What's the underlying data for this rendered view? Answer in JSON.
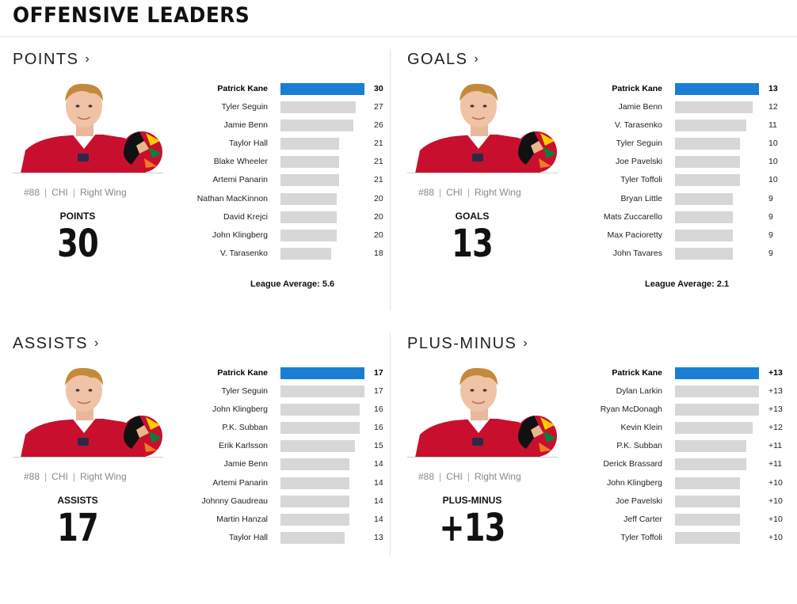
{
  "page_title": "OFFENSIVE LEADERS",
  "colors": {
    "accent_bar": "#1a7fd4",
    "bar": "#d7d7d7",
    "jersey": "#c8102e"
  },
  "panels": [
    {
      "heading": "POINTS",
      "heading_icon": "chevron-right-icon",
      "player": {
        "number": "#88",
        "team": "CHI",
        "position": "Right Wing"
      },
      "stat_label": "POINTS",
      "stat_value": "30",
      "league_average": "League Average: 5.6",
      "max": 30,
      "leaders": [
        {
          "name": "Patrick Kane",
          "value": "30",
          "num": 30
        },
        {
          "name": "Tyler Seguin",
          "value": "27",
          "num": 27
        },
        {
          "name": "Jamie Benn",
          "value": "26",
          "num": 26
        },
        {
          "name": "Taylor Hall",
          "value": "21",
          "num": 21
        },
        {
          "name": "Blake Wheeler",
          "value": "21",
          "num": 21
        },
        {
          "name": "Artemi Panarin",
          "value": "21",
          "num": 21
        },
        {
          "name": "Nathan MacKinnon",
          "value": "20",
          "num": 20
        },
        {
          "name": "David Krejci",
          "value": "20",
          "num": 20
        },
        {
          "name": "John Klingberg",
          "value": "20",
          "num": 20
        },
        {
          "name": "V. Tarasenko",
          "value": "18",
          "num": 18
        }
      ]
    },
    {
      "heading": "GOALS",
      "heading_icon": "chevron-right-icon",
      "player": {
        "number": "#88",
        "team": "CHI",
        "position": "Right Wing"
      },
      "stat_label": "GOALS",
      "stat_value": "13",
      "league_average": "League Average: 2.1",
      "max": 13,
      "leaders": [
        {
          "name": "Patrick Kane",
          "value": "13",
          "num": 13
        },
        {
          "name": "Jamie Benn",
          "value": "12",
          "num": 12
        },
        {
          "name": "V. Tarasenko",
          "value": "11",
          "num": 11
        },
        {
          "name": "Tyler Seguin",
          "value": "10",
          "num": 10
        },
        {
          "name": "Joe Pavelski",
          "value": "10",
          "num": 10
        },
        {
          "name": "Tyler Toffoli",
          "value": "10",
          "num": 10
        },
        {
          "name": "Bryan Little",
          "value": "9",
          "num": 9
        },
        {
          "name": "Mats Zuccarello",
          "value": "9",
          "num": 9
        },
        {
          "name": "Max Pacioretty",
          "value": "9",
          "num": 9
        },
        {
          "name": "John Tavares",
          "value": "9",
          "num": 9
        }
      ]
    },
    {
      "heading": "ASSISTS",
      "heading_icon": "chevron-right-icon",
      "player": {
        "number": "#88",
        "team": "CHI",
        "position": "Right Wing"
      },
      "stat_label": "ASSISTS",
      "stat_value": "17",
      "league_average": "",
      "max": 17,
      "leaders": [
        {
          "name": "Patrick Kane",
          "value": "17",
          "num": 17
        },
        {
          "name": "Tyler Seguin",
          "value": "17",
          "num": 17
        },
        {
          "name": "John Klingberg",
          "value": "16",
          "num": 16
        },
        {
          "name": "P.K. Subban",
          "value": "16",
          "num": 16
        },
        {
          "name": "Erik Karlsson",
          "value": "15",
          "num": 15
        },
        {
          "name": "Jamie Benn",
          "value": "14",
          "num": 14
        },
        {
          "name": "Artemi Panarin",
          "value": "14",
          "num": 14
        },
        {
          "name": "Johnny Gaudreau",
          "value": "14",
          "num": 14
        },
        {
          "name": "Martin Hanzal",
          "value": "14",
          "num": 14
        },
        {
          "name": "Taylor Hall",
          "value": "13",
          "num": 13
        }
      ]
    },
    {
      "heading": "PLUS-MINUS",
      "heading_icon": "chevron-right-icon",
      "player": {
        "number": "#88",
        "team": "CHI",
        "position": "Right Wing"
      },
      "stat_label": "PLUS-MINUS",
      "stat_value": "+13",
      "league_average": "",
      "max": 13,
      "leaders": [
        {
          "name": "Patrick Kane",
          "value": "+13",
          "num": 13
        },
        {
          "name": "Dylan Larkin",
          "value": "+13",
          "num": 13
        },
        {
          "name": "Ryan McDonagh",
          "value": "+13",
          "num": 13
        },
        {
          "name": "Kevin Klein",
          "value": "+12",
          "num": 12
        },
        {
          "name": "P.K. Subban",
          "value": "+11",
          "num": 11
        },
        {
          "name": "Derick Brassard",
          "value": "+11",
          "num": 11
        },
        {
          "name": "John Klingberg",
          "value": "+10",
          "num": 10
        },
        {
          "name": "Joe Pavelski",
          "value": "+10",
          "num": 10
        },
        {
          "name": "Jeff Carter",
          "value": "+10",
          "num": 10
        },
        {
          "name": "Tyler Toffoli",
          "value": "+10",
          "num": 10
        }
      ]
    }
  ]
}
